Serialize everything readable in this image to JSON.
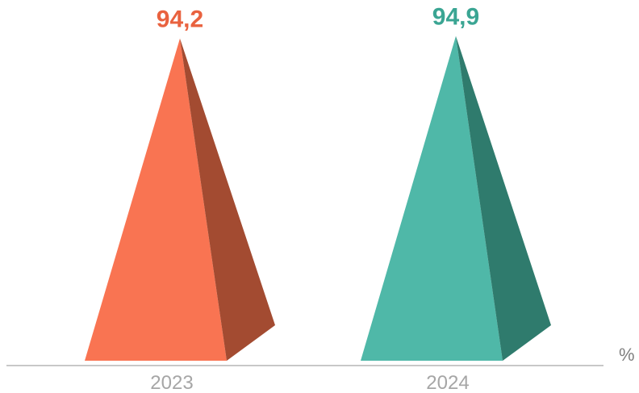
{
  "chart_data": {
    "type": "bar",
    "mark_shape": "pyramid",
    "categories": [
      "2023",
      "2024"
    ],
    "values": [
      94.2,
      94.9
    ],
    "value_labels": [
      "94,2",
      "94,9"
    ],
    "unit": "%",
    "title": "",
    "xlabel": "",
    "ylabel": "",
    "ylim": [
      0,
      100
    ],
    "grid": false,
    "colors": {
      "front": [
        "#f97452",
        "#4fb8a8"
      ],
      "side": [
        "#a34b31",
        "#2f7b6d"
      ],
      "value_text": [
        "#e9623f",
        "#3aa593"
      ],
      "axis": "#c8c8c8"
    }
  }
}
